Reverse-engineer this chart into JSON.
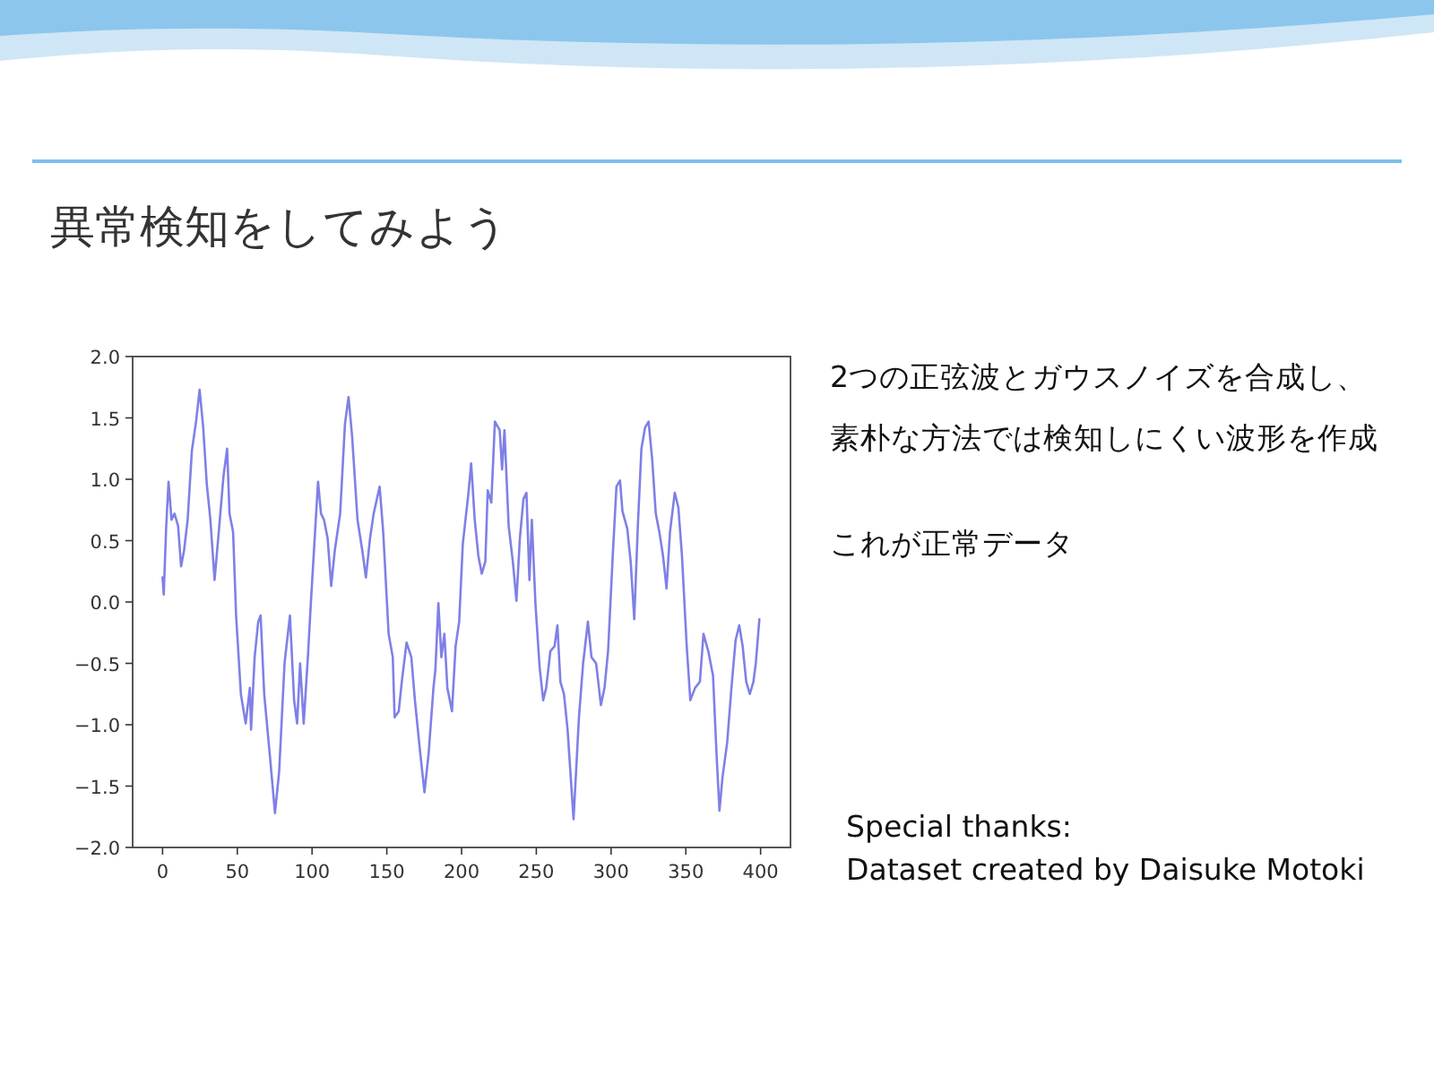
{
  "chart_data": {
    "type": "line",
    "title": "異常検知をしてみよう",
    "annotations": [
      "2つの正弦波とガウスノイズを合成し、素朴な方法では検知しにくい波形を作成",
      "これが正常データ",
      "Special thanks:",
      "Dataset created by Daisuke Motoki"
    ],
    "xlim": [
      -20,
      420
    ],
    "ylim": [
      -2,
      2
    ],
    "xticks": [
      0,
      50,
      100,
      150,
      200,
      250,
      300,
      350,
      400
    ],
    "yticks": [
      {
        "value": -2,
        "label": "−2.0"
      },
      {
        "value": -1.5,
        "label": "−1.5"
      },
      {
        "value": -1,
        "label": "−1.0"
      },
      {
        "value": -0.5,
        "label": "−0.5"
      },
      {
        "value": 0,
        "label": "0.0"
      },
      {
        "value": 0.5,
        "label": "0.5"
      },
      {
        "value": 1,
        "label": "1.0"
      },
      {
        "value": 1.5,
        "label": "1.5"
      },
      {
        "value": 2,
        "label": "2.0"
      }
    ],
    "series": [
      {
        "color": "#7f80e6",
        "x": [
          0,
          0.8,
          2.4,
          4,
          6,
          8,
          10.4,
          12.4,
          14.4,
          16.8,
          19.6,
          22.4,
          24.8,
          27.2,
          29.6,
          32,
          34.8,
          37.6,
          40.8,
          43.2,
          44.8,
          47.2,
          49.2,
          52.4,
          55.6,
          58.4,
          59.2,
          61.6,
          64,
          65.6,
          68,
          72,
          75.2,
          78,
          81.6,
          85.2,
          88,
          90,
          92,
          94.4,
          97.2,
          99.2,
          102,
          104,
          106,
          108,
          110.4,
          112.8,
          115.2,
          118.8,
          122,
          124.4,
          126.8,
          130.4,
          133.6,
          136,
          138.8,
          141.2,
          145.2,
          147.6,
          151.2,
          154,
          155.2,
          158,
          160,
          163.2,
          166.4,
          168.8,
          172,
          175.2,
          178,
          181.2,
          182.5,
          184.5,
          186.5,
          188.5,
          190.5,
          193.6,
          196,
          198.4,
          200.8,
          204.8,
          206.4,
          208.8,
          211.2,
          213.5,
          215.9,
          217.5,
          219.9,
          222.3,
          225.5,
          227.1,
          228.7,
          231.5,
          234.3,
          236.7,
          239,
          241.4,
          243.4,
          245.4,
          247,
          249.4,
          252.2,
          254.6,
          256.6,
          259.4,
          262.2,
          264.1,
          266.1,
          268.5,
          270.9,
          274.9,
          278.5,
          281.3,
          284.5,
          286.9,
          290,
          293.2,
          295.6,
          298,
          301.2,
          303.6,
          306,
          307.6,
          310.8,
          313.1,
          315.5,
          317.9,
          320.3,
          322.7,
          325.1,
          327.5,
          329.9,
          332.3,
          334.7,
          337.1,
          339.4,
          342.6,
          345,
          347.4,
          350.6,
          353,
          356.2,
          359.4,
          361.8,
          365,
          368.2,
          370.5,
          372.5,
          374.5,
          377.7,
          380.5,
          383.3,
          385.7,
          388,
          390.4,
          392.8,
          395.2,
          396.8,
          399.2
        ],
        "values": [
          0.2,
          0.06,
          0.6,
          0.98,
          0.67,
          0.72,
          0.62,
          0.29,
          0.42,
          0.67,
          1.23,
          1.47,
          1.73,
          1.42,
          0.96,
          0.67,
          0.18,
          0.57,
          1.03,
          1.25,
          0.72,
          0.57,
          -0.11,
          -0.75,
          -0.99,
          -0.7,
          -1.04,
          -0.45,
          -0.16,
          -0.11,
          -0.75,
          -1.28,
          -1.72,
          -1.38,
          -0.5,
          -0.11,
          -0.8,
          -0.99,
          -0.5,
          -0.99,
          -0.45,
          -0.01,
          0.57,
          0.98,
          0.72,
          0.67,
          0.52,
          0.13,
          0.42,
          0.72,
          1.45,
          1.67,
          1.35,
          0.67,
          0.42,
          0.2,
          0.52,
          0.72,
          0.94,
          0.57,
          -0.26,
          -0.45,
          -0.94,
          -0.89,
          -0.65,
          -0.33,
          -0.45,
          -0.8,
          -1.19,
          -1.55,
          -1.23,
          -0.7,
          -0.55,
          -0.01,
          -0.45,
          -0.26,
          -0.7,
          -0.89,
          -0.36,
          -0.16,
          0.47,
          0.91,
          1.13,
          0.67,
          0.38,
          0.23,
          0.33,
          0.91,
          0.81,
          1.47,
          1.4,
          1.08,
          1.4,
          0.62,
          0.33,
          0.01,
          0.52,
          0.84,
          0.89,
          0.18,
          0.67,
          -0.01,
          -0.53,
          -0.8,
          -0.7,
          -0.4,
          -0.36,
          -0.19,
          -0.65,
          -0.75,
          -1.04,
          -1.77,
          -0.94,
          -0.5,
          -0.16,
          -0.45,
          -0.5,
          -0.84,
          -0.7,
          -0.4,
          0.4,
          0.94,
          0.99,
          0.74,
          0.6,
          0.33,
          -0.14,
          0.62,
          1.25,
          1.42,
          1.47,
          1.16,
          0.72,
          0.57,
          0.38,
          0.11,
          0.57,
          0.89,
          0.77,
          0.38,
          -0.36,
          -0.8,
          -0.7,
          -0.65,
          -0.26,
          -0.4,
          -0.6,
          -1.23,
          -1.7,
          -1.43,
          -1.14,
          -0.7,
          -0.31,
          -0.19,
          -0.36,
          -0.65,
          -0.75,
          -0.65,
          -0.5,
          -0.14
        ]
      }
    ]
  }
}
